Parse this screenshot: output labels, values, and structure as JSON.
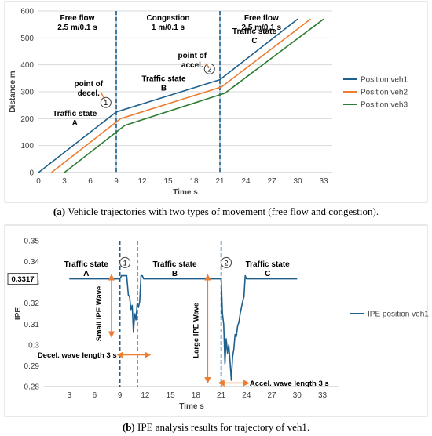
{
  "chart_data": [
    {
      "type": "line",
      "xlabel": "Time s",
      "ylabel": "Distance m",
      "xlim": [
        0,
        34
      ],
      "ylim": [
        0,
        600
      ],
      "xticks": [
        0,
        3,
        6,
        9,
        12,
        15,
        18,
        21,
        24,
        27,
        30,
        33
      ],
      "yticks": [
        0,
        100,
        200,
        300,
        400,
        500,
        600
      ],
      "grid": "horizontal",
      "legend": "right",
      "series": [
        {
          "name": "Position veh1",
          "color": "#1f5f8b",
          "x": [
            0,
            9,
            21,
            30
          ],
          "y": [
            0,
            225,
            345,
            570
          ]
        },
        {
          "name": "Position veh2",
          "color": "#ed7d31",
          "x": [
            1.5,
            9.5,
            21.2,
            31.5
          ],
          "y": [
            0,
            200,
            318,
            570
          ]
        },
        {
          "name": "Position veh3",
          "color": "#2e7d32",
          "x": [
            3,
            10,
            21.6,
            33
          ],
          "y": [
            0,
            175,
            295,
            570
          ]
        }
      ],
      "vlines": [
        {
          "x": 9,
          "style": "solid",
          "color": "#8fb3d6"
        },
        {
          "x": 9,
          "style": "dashed",
          "color": "#1f5f8b"
        },
        {
          "x": 21,
          "style": "solid",
          "color": "#8fb3d6"
        },
        {
          "x": 21,
          "style": "dashed",
          "color": "#1f5f8b"
        }
      ],
      "zone_labels": [
        {
          "line1": "Free flow",
          "line2": "2.5 m/0.1 s",
          "x": 4.5
        },
        {
          "line1": "Congestion",
          "line2": "1 m/0.1 s",
          "x": 15
        },
        {
          "line1": "Free flow",
          "line2": "2.5 m/0.1 s",
          "x": 25.8
        }
      ],
      "annotations": [
        {
          "line1": "Traffic state",
          "line2": "A",
          "x": 4.2,
          "y": 210
        },
        {
          "line1": "Traffic state",
          "line2": "B",
          "x": 14.5,
          "y": 340
        },
        {
          "line1": "Traffic state",
          "line2": "C",
          "x": 25,
          "y": 515
        },
        {
          "line1": "point of",
          "line2": "decel.",
          "x": 5.8,
          "y": 320
        },
        {
          "line1": "point of",
          "line2": "accel.",
          "x": 17.8,
          "y": 425
        }
      ],
      "markers": [
        {
          "label": "1",
          "x": 7.8,
          "y": 260
        },
        {
          "label": "2",
          "x": 19.8,
          "y": 385
        }
      ]
    },
    {
      "type": "line",
      "xlabel": "Time s",
      "ylabel": "IPE",
      "xlim": [
        0,
        35
      ],
      "ylim": [
        0.28,
        0.35
      ],
      "xticks": [
        3,
        6,
        9,
        12,
        15,
        18,
        21,
        24,
        27,
        30,
        33
      ],
      "yticks": [
        0.28,
        0.29,
        0.3,
        0.31,
        0.32,
        0.33,
        0.34,
        0.35
      ],
      "yticklabels": [
        "0.28",
        "0.29",
        "0.3",
        "0.31",
        "0.32",
        "0.33",
        "0.34",
        "0.35"
      ],
      "grid": "none",
      "legend": "right",
      "highlight_value": "0.3317",
      "series": [
        {
          "name": "IPE position veh1",
          "color": "#1f5f8b",
          "x": [
            3,
            9,
            9.2,
            9.5,
            9.8,
            10.0,
            10.15,
            10.3,
            10.45,
            10.6,
            10.75,
            10.9,
            11.05,
            11.2,
            11.35,
            11.5,
            11.65,
            11.8,
            12.0,
            21,
            21.15,
            21.3,
            21.45,
            21.6,
            21.75,
            21.9,
            22.05,
            22.2,
            22.35,
            22.5,
            22.65,
            22.8,
            22.95,
            23.1,
            23.25,
            23.4,
            23.55,
            23.7,
            23.85,
            24.0,
            24.2,
            30
          ],
          "y": [
            0.3317,
            0.3317,
            0.3332,
            0.3332,
            0.3332,
            0.324,
            0.323,
            0.317,
            0.319,
            0.306,
            0.315,
            0.312,
            0.32,
            0.318,
            0.321,
            0.3332,
            0.3332,
            0.3317,
            0.3317,
            0.3317,
            0.315,
            0.31,
            0.291,
            0.303,
            0.296,
            0.3,
            0.292,
            0.283,
            0.294,
            0.298,
            0.305,
            0.304,
            0.309,
            0.311,
            0.315,
            0.318,
            0.321,
            0.323,
            0.3332,
            0.3317,
            0.3317,
            0.3317
          ]
        }
      ],
      "vlines": [
        {
          "x": 9,
          "style": "dashed",
          "color": "#1f5f8b"
        },
        {
          "x": 21,
          "style": "dashed",
          "color": "#1f5f8b"
        },
        {
          "x": 11.1,
          "style": "dashed",
          "color": "#ed7d31"
        }
      ],
      "annotations": [
        {
          "line1": "Traffic state",
          "line2": "A",
          "x": 5,
          "y": 0.3375
        },
        {
          "line1": "Traffic state",
          "line2": "B",
          "x": 15.5,
          "y": 0.3375
        },
        {
          "line1": "Traffic state",
          "line2": "C",
          "x": 26.5,
          "y": 0.3375
        }
      ],
      "markers": [
        {
          "label": "1",
          "x": 9.6,
          "y": 0.3395
        },
        {
          "label": "2",
          "x": 21.6,
          "y": 0.3395
        }
      ],
      "wave_labels": [
        {
          "text": "Small IPE Wave",
          "orientation": "vertical",
          "x": 6.8,
          "y": 0.315
        },
        {
          "text": "Large IPE Wave",
          "orientation": "vertical",
          "x": 18.3,
          "y": 0.307
        }
      ],
      "length_labels": [
        {
          "text": "Decel. wave length 3 s",
          "x_start": 9,
          "x_end": 12.3,
          "y": 0.2952
        },
        {
          "text": "Accel. wave length 3 s",
          "x_start": 21,
          "x_end": 24,
          "y": 0.2817
        }
      ]
    }
  ],
  "captions": {
    "a_label": "(a)",
    "a_text": "Vehicle trajectories with two types of movement (free flow and congestion).",
    "b_label": "(b)",
    "b_text": "IPE analysis results for trajectory of veh1."
  }
}
